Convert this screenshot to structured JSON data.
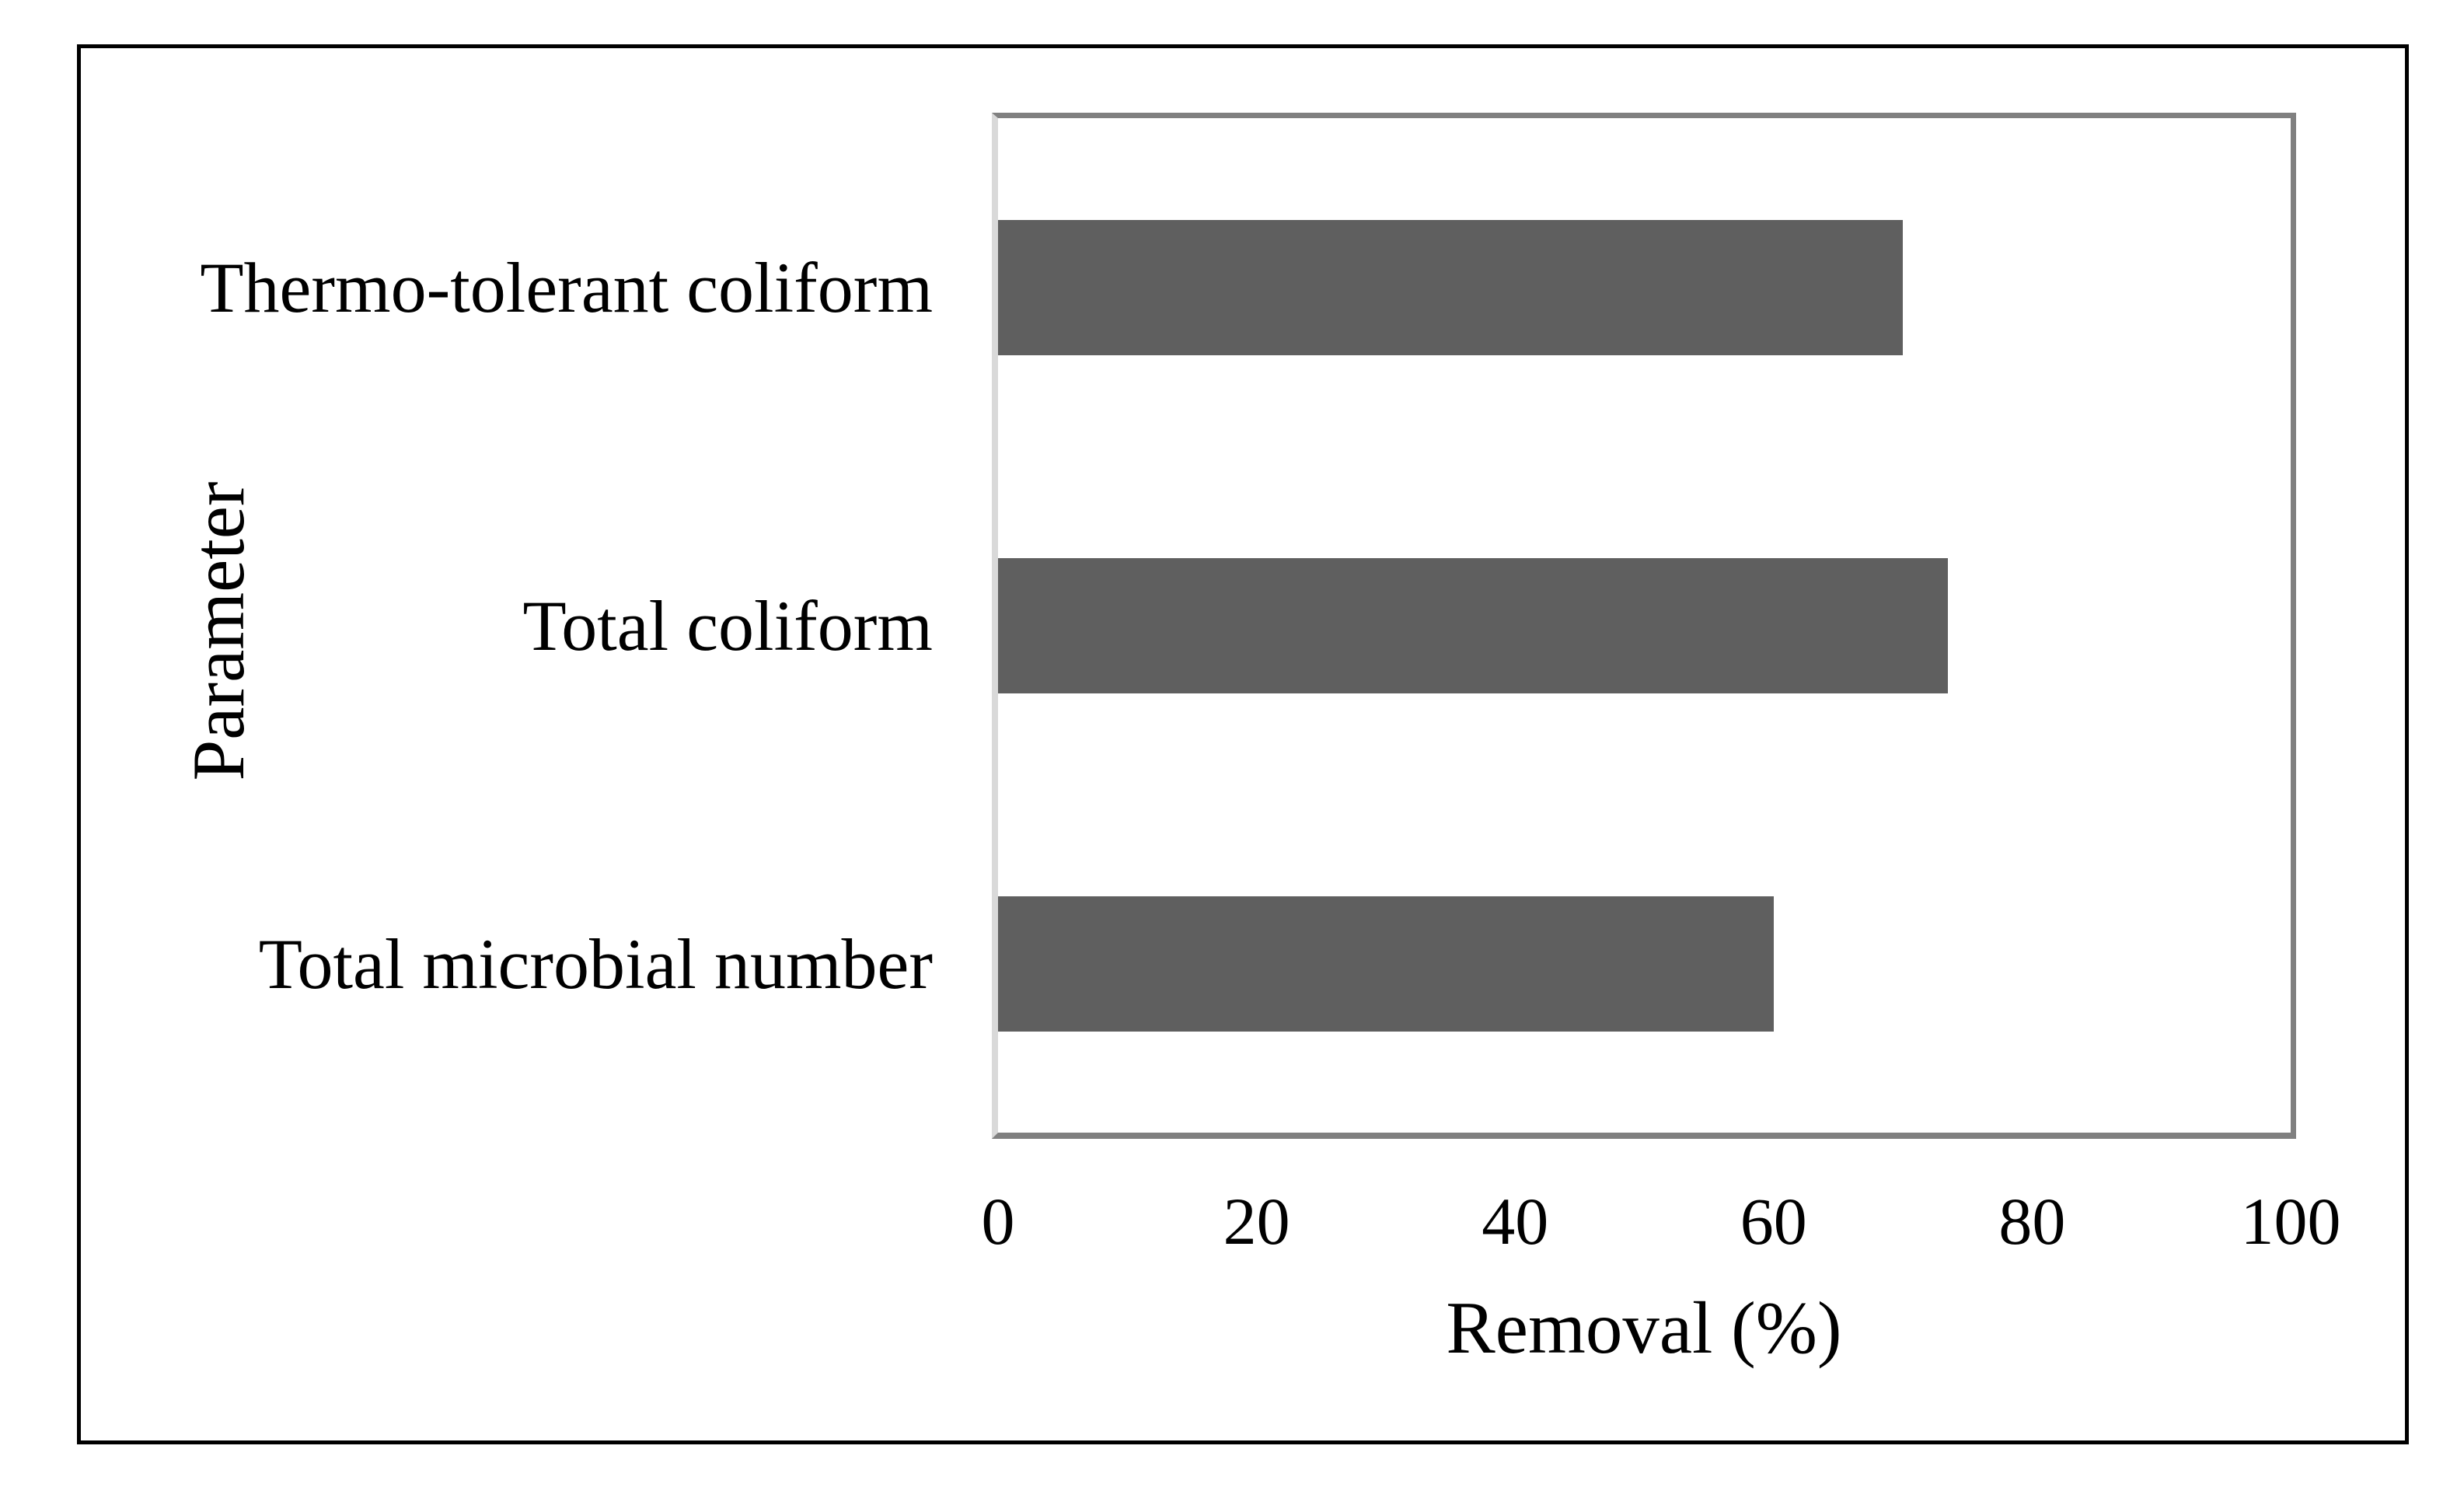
{
  "chart_data": {
    "type": "bar",
    "orientation": "horizontal",
    "title": "",
    "categories": [
      "Thermo-tolerant coliform",
      "Total coliform",
      "Total microbial number"
    ],
    "values": [
      70,
      73.5,
      60
    ],
    "xlabel": "Removal (%)",
    "ylabel": "Parameter",
    "xlim": [
      0,
      100
    ],
    "xticks": [
      "0",
      "20",
      "40",
      "60",
      "80",
      "100"
    ],
    "grid": false,
    "legend_position": "none",
    "bar_color": "#5f5f5f",
    "plot_border_color": "#808080",
    "axis_line_color": "#d9d9d9",
    "frame_color": "#000000",
    "background_color": "#ffffff",
    "text_color": "#000000"
  }
}
